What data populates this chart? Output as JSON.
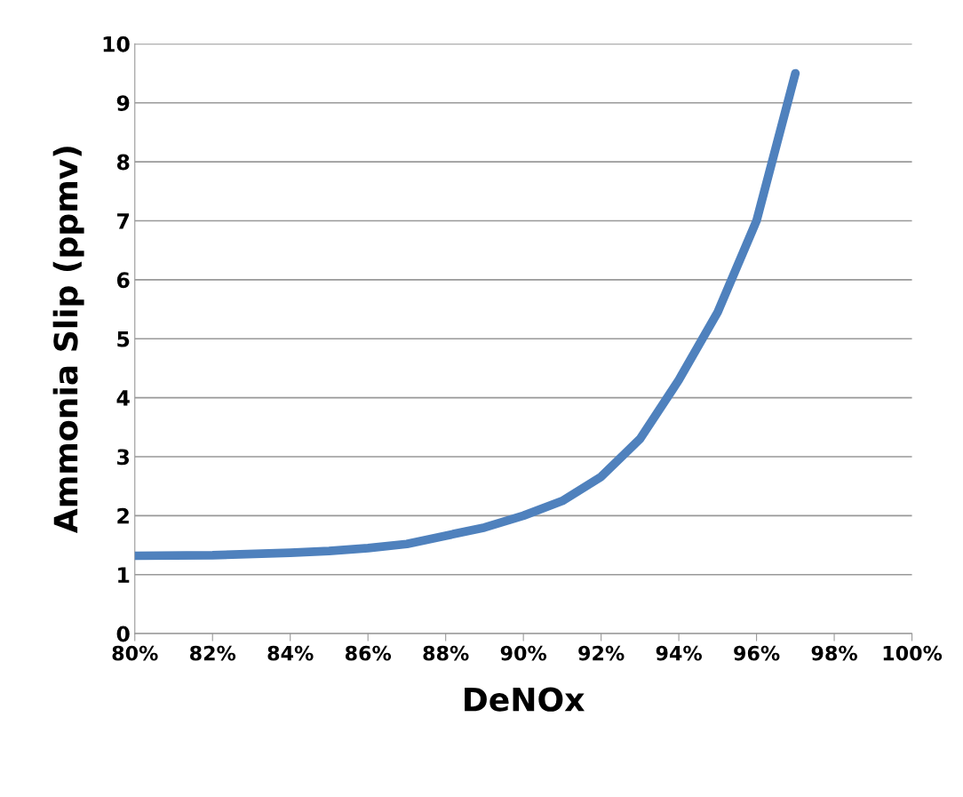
{
  "chart_data": {
    "type": "line",
    "xlabel": "DeNOx",
    "ylabel": "Ammonia Slip (ppmv)",
    "x": [
      80,
      82,
      84,
      85,
      86,
      87,
      88,
      89,
      90,
      91,
      92,
      93,
      94,
      95,
      96,
      97
    ],
    "series": [
      {
        "color": "#4f81bd",
        "values": [
          1.32,
          1.33,
          1.37,
          1.4,
          1.45,
          1.52,
          1.66,
          1.8,
          2.0,
          2.25,
          2.66,
          3.3,
          4.3,
          5.45,
          7.0,
          9.5
        ]
      }
    ],
    "xlim": [
      80,
      100
    ],
    "xticks": [
      {
        "value": 80,
        "label": "80%"
      },
      {
        "value": 82,
        "label": "82%"
      },
      {
        "value": 84,
        "label": "84%"
      },
      {
        "value": 86,
        "label": "86%"
      },
      {
        "value": 88,
        "label": "88%"
      },
      {
        "value": 90,
        "label": "90%"
      },
      {
        "value": 92,
        "label": "92%"
      },
      {
        "value": 94,
        "label": "94%"
      },
      {
        "value": 96,
        "label": "96%"
      },
      {
        "value": 98,
        "label": "98%"
      },
      {
        "value": 100,
        "label": "100%"
      }
    ],
    "ylim": [
      0,
      10
    ],
    "yticks": [
      0,
      1,
      2,
      3,
      4,
      5,
      6,
      7,
      8,
      9,
      10
    ],
    "grid": "y",
    "legend": false,
    "marker": "none",
    "line_style": "solid"
  }
}
